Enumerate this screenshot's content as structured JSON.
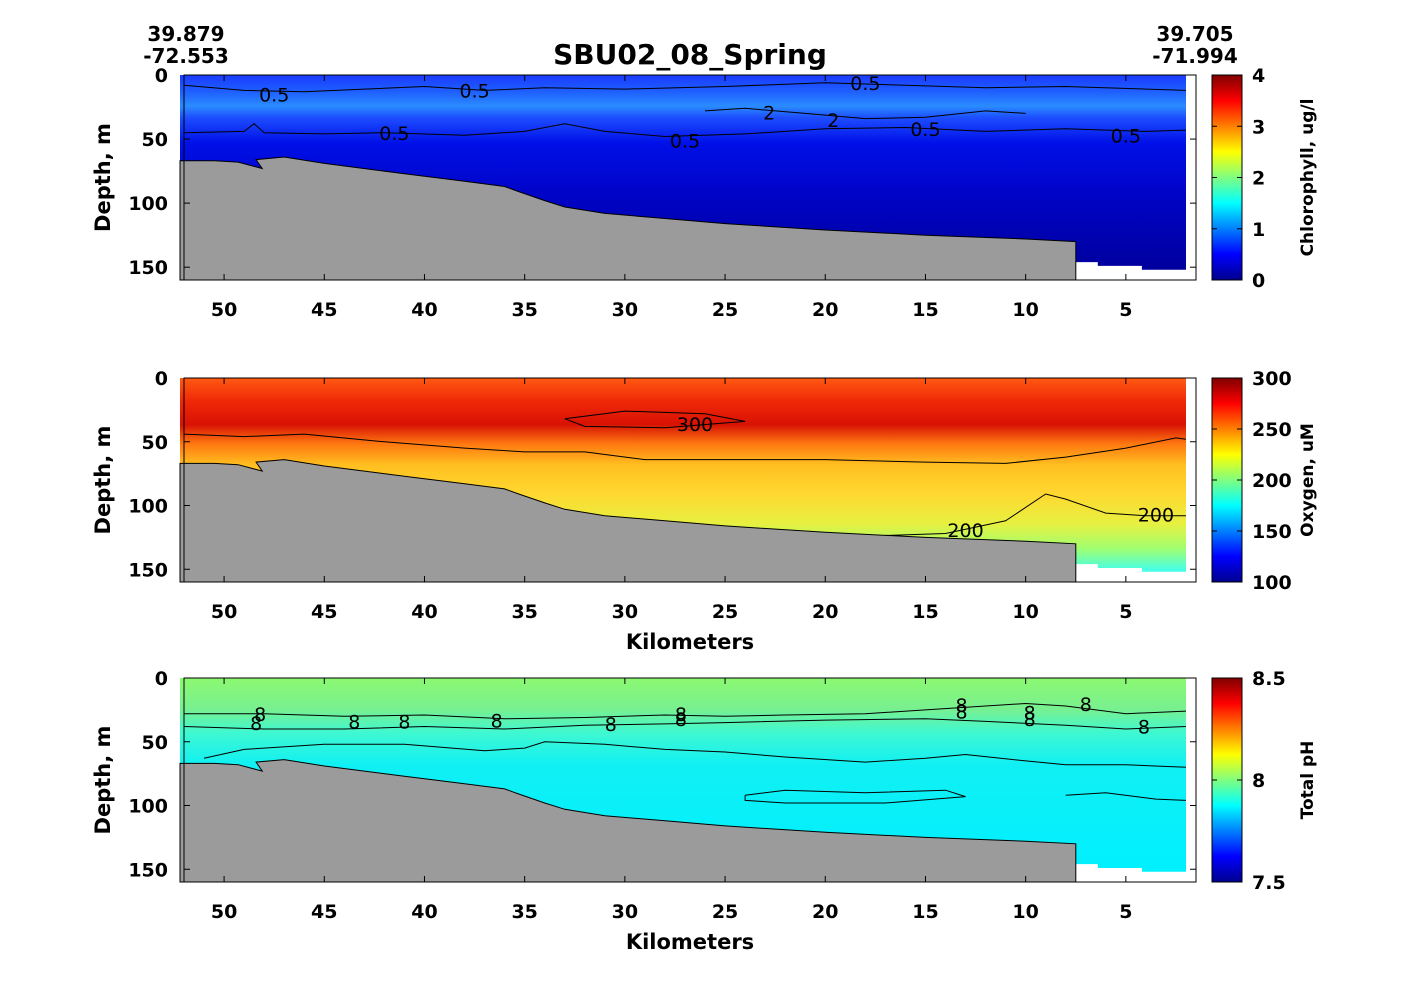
{
  "title": "SBU02_08_Spring",
  "start_position": {
    "lat": "39.879",
    "lon": "-72.553"
  },
  "end_position": {
    "lat": "39.705",
    "lon": "-71.994"
  },
  "chart_data": [
    {
      "type": "heatmap",
      "name": "chlorophyll",
      "xlabel": "",
      "ylabel": "Depth, m",
      "xlim": [
        52,
        1.5
      ],
      "ylim": [
        0,
        160
      ],
      "xticks": [
        50,
        45,
        40,
        35,
        30,
        25,
        20,
        15,
        10,
        5
      ],
      "yticks": [
        0,
        50,
        100,
        150
      ],
      "colorbar": {
        "label": "Chlorophyll, ug/l",
        "min": 0,
        "max": 4,
        "ticks": [
          0,
          1,
          2,
          3,
          4
        ]
      },
      "contour_labels": [
        {
          "text": "0.5",
          "x": 47.5,
          "y": 16
        },
        {
          "text": "0.5",
          "x": 37.5,
          "y": 13
        },
        {
          "text": "0.5",
          "x": 18.0,
          "y": 7
        },
        {
          "text": "0.5",
          "x": 41.5,
          "y": 46
        },
        {
          "text": "0.5",
          "x": 27.0,
          "y": 52
        },
        {
          "text": "0.5",
          "x": 15.0,
          "y": 43
        },
        {
          "text": "0.5",
          "x": 5.0,
          "y": 48
        },
        {
          "text": "2",
          "x": 22.8,
          "y": 30
        },
        {
          "text": "2",
          "x": 19.6,
          "y": 36
        }
      ]
    },
    {
      "type": "heatmap",
      "name": "oxygen",
      "xlabel": "Kilometers",
      "ylabel": "Depth, m",
      "xlim": [
        52,
        1.5
      ],
      "ylim": [
        0,
        160
      ],
      "xticks": [
        50,
        45,
        40,
        35,
        30,
        25,
        20,
        15,
        10,
        5
      ],
      "yticks": [
        0,
        50,
        100,
        150
      ],
      "colorbar": {
        "label": "Oxygen, uM",
        "min": 100,
        "max": 300,
        "ticks": [
          100,
          150,
          200,
          250,
          300
        ]
      },
      "contour_labels": [
        {
          "text": "300",
          "x": 26.5,
          "y": 37
        },
        {
          "text": "200",
          "x": 13.0,
          "y": 120
        },
        {
          "text": "200",
          "x": 3.5,
          "y": 108
        }
      ]
    },
    {
      "type": "heatmap",
      "name": "ph",
      "xlabel": "Kilometers",
      "ylabel": "Depth, m",
      "xlim": [
        52,
        1.5
      ],
      "ylim": [
        0,
        160
      ],
      "xticks": [
        50,
        45,
        40,
        35,
        30,
        25,
        20,
        15,
        10,
        5
      ],
      "yticks": [
        0,
        50,
        100,
        150
      ],
      "colorbar": {
        "label": "Total pH",
        "min": 7.5,
        "max": 8.5,
        "ticks": [
          7.5,
          8,
          8.5
        ]
      },
      "contour_labels": [
        {
          "text": "8",
          "x": 48.2,
          "y": 29
        },
        {
          "text": "8",
          "x": 48.4,
          "y": 36
        },
        {
          "text": "8",
          "x": 43.5,
          "y": 35
        },
        {
          "text": "8",
          "x": 41.0,
          "y": 35
        },
        {
          "text": "8",
          "x": 36.4,
          "y": 34
        },
        {
          "text": "8",
          "x": 30.7,
          "y": 37
        },
        {
          "text": "8",
          "x": 27.2,
          "y": 29
        },
        {
          "text": "8",
          "x": 27.2,
          "y": 33
        },
        {
          "text": "8",
          "x": 13.2,
          "y": 22
        },
        {
          "text": "8",
          "x": 13.2,
          "y": 27
        },
        {
          "text": "8",
          "x": 9.8,
          "y": 28
        },
        {
          "text": "8",
          "x": 9.8,
          "y": 33
        },
        {
          "text": "8",
          "x": 7.0,
          "y": 21
        },
        {
          "text": "8",
          "x": 4.1,
          "y": 39
        }
      ]
    }
  ]
}
